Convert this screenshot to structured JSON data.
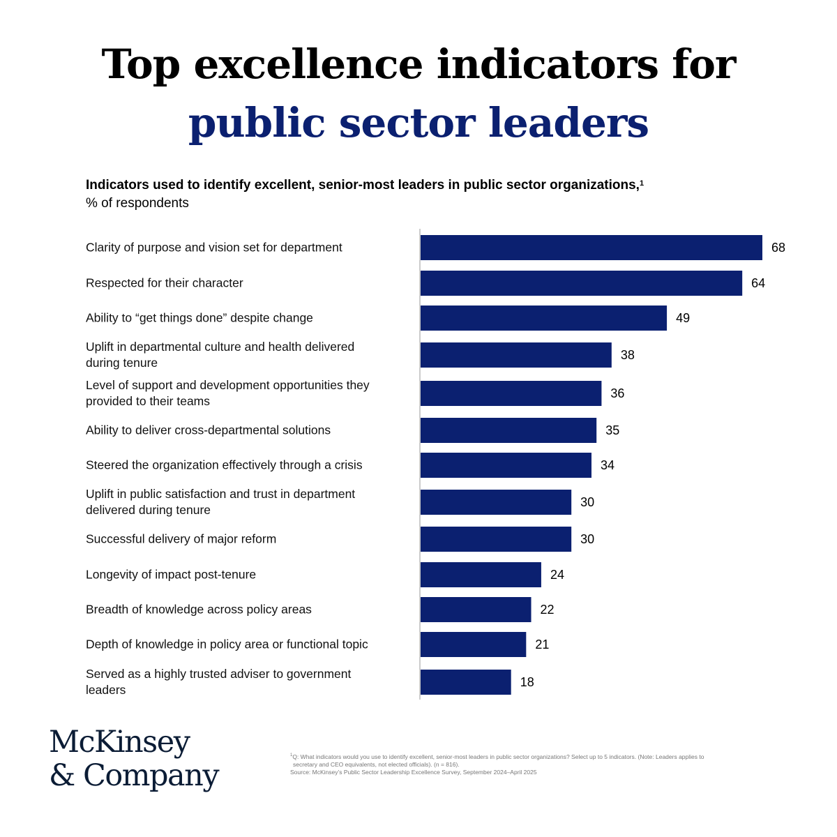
{
  "headline": {
    "line1": "Top excellence indicators for",
    "line2": "public sector leaders",
    "line2_color": "#0b2070"
  },
  "chart_data": {
    "type": "bar",
    "orientation": "horizontal",
    "title": "Indicators used to identify excellent, senior-most leaders in public sector organizations,",
    "title_footnote_marker": "1",
    "unit": "% of respondents",
    "bar_color": "#0b2070",
    "categories": [
      [
        "Clarity of purpose and vision set for department"
      ],
      [
        "Respected for their character"
      ],
      [
        "Ability to “get things done” despite change"
      ],
      [
        "Uplift in departmental culture and health delivered",
        "during tenure"
      ],
      [
        "Level of support and development opportunities they",
        "provided to their teams"
      ],
      [
        "Ability to deliver cross-departmental solutions"
      ],
      [
        "Steered the organization effectively through a crisis"
      ],
      [
        "Uplift in public satisfaction and trust in department",
        "delivered during tenure"
      ],
      [
        "Successful delivery of major reform"
      ],
      [
        "Longevity of impact post-tenure"
      ],
      [
        "Breadth of knowledge across policy areas"
      ],
      [
        "Depth of knowledge in policy area or functional topic"
      ],
      [
        "Served as a highly trusted adviser to government",
        "leaders"
      ]
    ],
    "values": [
      68,
      64,
      49,
      38,
      36,
      35,
      34,
      30,
      30,
      24,
      22,
      21,
      18
    ],
    "value_labels": [
      "68",
      "64",
      "49",
      "38",
      "36",
      "35",
      "34",
      "30",
      "30",
      "24",
      "22",
      "21",
      "18"
    ]
  },
  "logo": {
    "line1": "McKinsey",
    "line2": "& Company"
  },
  "footnote": {
    "marker": "1",
    "line1": "Q: What indicators would you use to identify excellent, senior-most leaders in public sector organizations? Select up to 5 indicators. (Note: Leaders applies to",
    "line2": "secretary and CEO equivalents, not elected officials). (n = 816).",
    "source": "Source: McKinsey’s Public Sector Leadership Excellence Survey, September 2024–April 2025"
  }
}
